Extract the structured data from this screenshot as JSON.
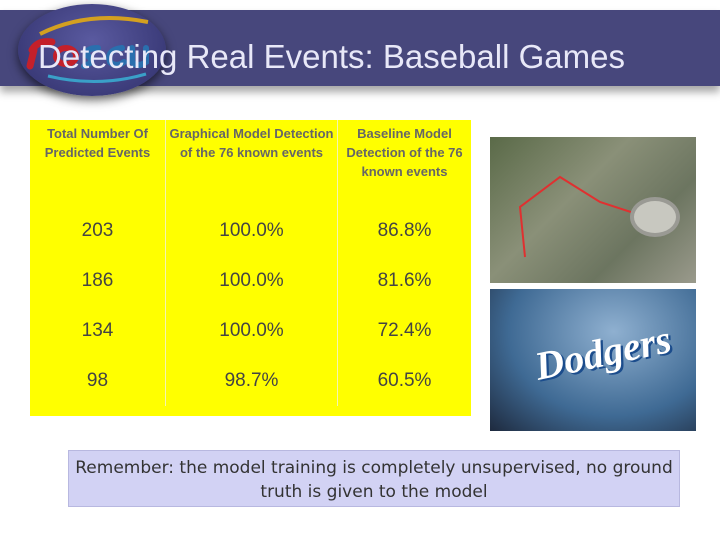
{
  "logo": {
    "text": "rescue"
  },
  "title": "Detecting Real Events: Baseball Games",
  "table": {
    "headers": [
      "Total Number Of Predicted Events",
      "Graphical Model Detection of the 76 known events",
      "Baseline Model Detection of the 76 known events"
    ],
    "rows": [
      [
        "203",
        "100.0%",
        "86.8%"
      ],
      [
        "186",
        "100.0%",
        "81.6%"
      ],
      [
        "134",
        "100.0%",
        "72.4%"
      ],
      [
        "98",
        "98.7%",
        "60.5%"
      ]
    ]
  },
  "images": {
    "dodgers_logo": "Dodgers"
  },
  "note": "Remember: the model training is completely unsupervised, no ground truth is given to the model",
  "colors": {
    "banner": "#47477c",
    "table": "#ffff00",
    "note": "#d2d2f4"
  }
}
